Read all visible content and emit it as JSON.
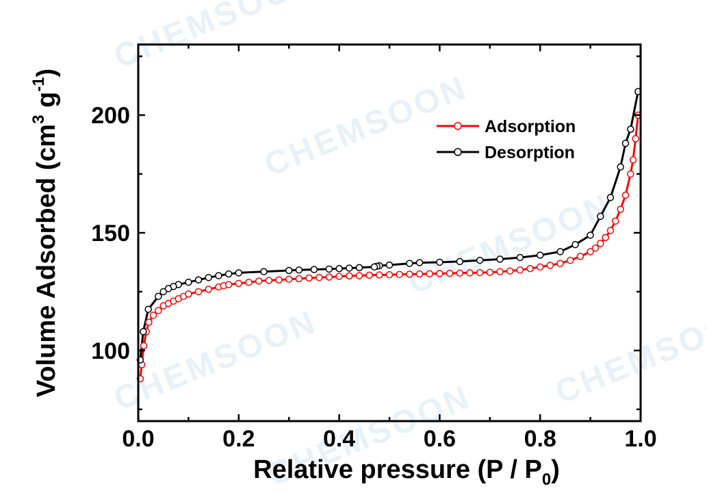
{
  "watermark": "CHEMSOON",
  "chart_data": {
    "type": "line",
    "title": "",
    "xlabel": "Relative pressure (P / P",
    "xlabel_sub": "0",
    "xlabel_end": ")",
    "ylabel": "Volume Adsorbed (cm",
    "ylabel_sup1": "3",
    "ylabel_mid": " g",
    "ylabel_sup2": "-1",
    "ylabel_end": ")",
    "xlim": [
      0.0,
      1.0
    ],
    "ylim": [
      70,
      230
    ],
    "xticks": [
      0.0,
      0.2,
      0.4,
      0.6,
      0.8,
      1.0
    ],
    "xtick_labels": [
      "0.0",
      "0.2",
      "0.4",
      "0.6",
      "0.8",
      "1.0"
    ],
    "yticks": [
      100,
      150,
      200
    ],
    "ytick_labels": [
      "100",
      "150",
      "200"
    ],
    "grid": false,
    "legend_position": "top-right",
    "series": [
      {
        "name": "Adsorption",
        "color": "#ff0000",
        "marker": "open-circle",
        "x": [
          0.004,
          0.007,
          0.011,
          0.016,
          0.021,
          0.03,
          0.04,
          0.05,
          0.06,
          0.07,
          0.08,
          0.09,
          0.1,
          0.12,
          0.14,
          0.16,
          0.17,
          0.18,
          0.2,
          0.22,
          0.24,
          0.26,
          0.28,
          0.3,
          0.32,
          0.34,
          0.36,
          0.38,
          0.4,
          0.42,
          0.44,
          0.46,
          0.48,
          0.5,
          0.52,
          0.54,
          0.56,
          0.58,
          0.6,
          0.62,
          0.64,
          0.66,
          0.68,
          0.7,
          0.72,
          0.74,
          0.76,
          0.78,
          0.8,
          0.82,
          0.84,
          0.86,
          0.88,
          0.9,
          0.91,
          0.92,
          0.93,
          0.94,
          0.95,
          0.96,
          0.97,
          0.98,
          0.985,
          0.99,
          0.995
        ],
        "y": [
          88,
          94,
          102,
          108,
          112,
          115,
          117,
          119,
          120,
          121,
          122,
          123,
          124,
          125,
          126,
          127,
          127.5,
          128,
          128.5,
          129,
          129.5,
          129.8,
          130,
          130.3,
          130.5,
          130.8,
          131,
          131.2,
          131.5,
          131.7,
          131.8,
          132,
          132.1,
          132.2,
          132.3,
          132.4,
          132.5,
          132.6,
          132.7,
          132.8,
          132.9,
          133,
          133.1,
          133.2,
          133.5,
          133.8,
          134.2,
          134.8,
          135.5,
          136.2,
          137,
          138.3,
          140,
          142,
          143.5,
          145.5,
          148,
          151,
          155,
          160,
          166,
          175,
          181,
          190,
          200
        ]
      },
      {
        "name": "Desorption",
        "color": "#000000",
        "marker": "open-circle",
        "x": [
          0.995,
          0.98,
          0.97,
          0.96,
          0.94,
          0.92,
          0.9,
          0.87,
          0.84,
          0.8,
          0.76,
          0.72,
          0.68,
          0.64,
          0.6,
          0.56,
          0.54,
          0.5,
          0.48,
          0.475,
          0.47,
          0.44,
          0.42,
          0.4,
          0.38,
          0.35,
          0.32,
          0.3,
          0.25,
          0.2,
          0.18,
          0.16,
          0.14,
          0.12,
          0.1,
          0.08,
          0.07,
          0.06,
          0.05,
          0.04,
          0.02,
          0.01,
          0.004
        ],
        "y": [
          210,
          194,
          188,
          178,
          165,
          157,
          149,
          145,
          142,
          140.5,
          139.5,
          138.8,
          138.3,
          137.8,
          137.5,
          137.3,
          137,
          136.3,
          136,
          135.8,
          135.5,
          135.2,
          135,
          134.8,
          134.6,
          134.4,
          134.2,
          134,
          133.5,
          133,
          132.5,
          131.8,
          131,
          130,
          129,
          128,
          127.2,
          126.3,
          125,
          123,
          117.5,
          108,
          96
        ]
      }
    ]
  }
}
